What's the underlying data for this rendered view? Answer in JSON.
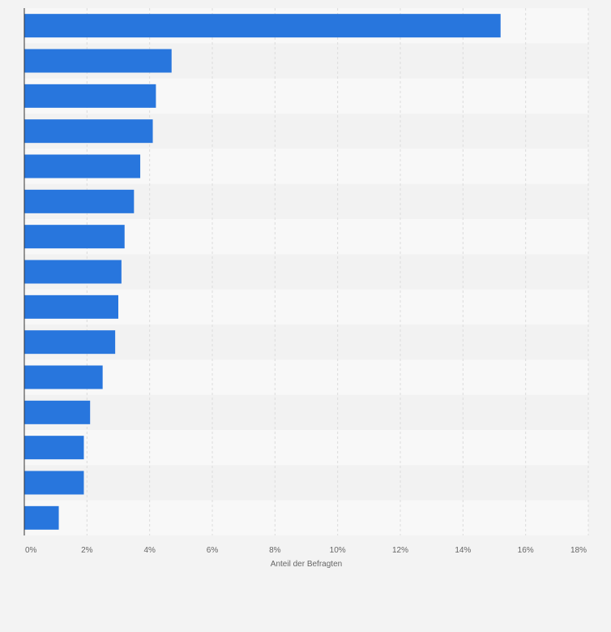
{
  "chart_data": {
    "type": "bar",
    "orientation": "horizontal",
    "title": "",
    "xlabel": "Anteil der Befragten",
    "ylabel": "",
    "xlim": [
      0,
      18
    ],
    "x_ticks": [
      "0%",
      "2%",
      "4%",
      "6%",
      "8%",
      "10%",
      "12%",
      "14%",
      "16%",
      "18%"
    ],
    "x_tick_values": [
      0,
      2,
      4,
      6,
      8,
      10,
      12,
      14,
      16,
      18
    ],
    "categories": [
      "",
      "",
      "",
      "",
      "",
      "",
      "",
      "",
      "",
      "",
      "",
      "",
      "",
      "",
      ""
    ],
    "values": [
      15.2,
      4.7,
      4.2,
      4.1,
      3.7,
      3.5,
      3.2,
      3.1,
      3.0,
      2.9,
      2.5,
      2.1,
      1.9,
      1.9,
      1.1
    ],
    "grid": true,
    "legend": "none"
  },
  "colors": {
    "bar": "#2876dd",
    "page_background": "#f3f3f3",
    "band_light": "#f8f8f8",
    "band_dark": "#f2f2f2",
    "grid": "#dcdcdc",
    "axis": "#333333",
    "text": "#666666"
  }
}
